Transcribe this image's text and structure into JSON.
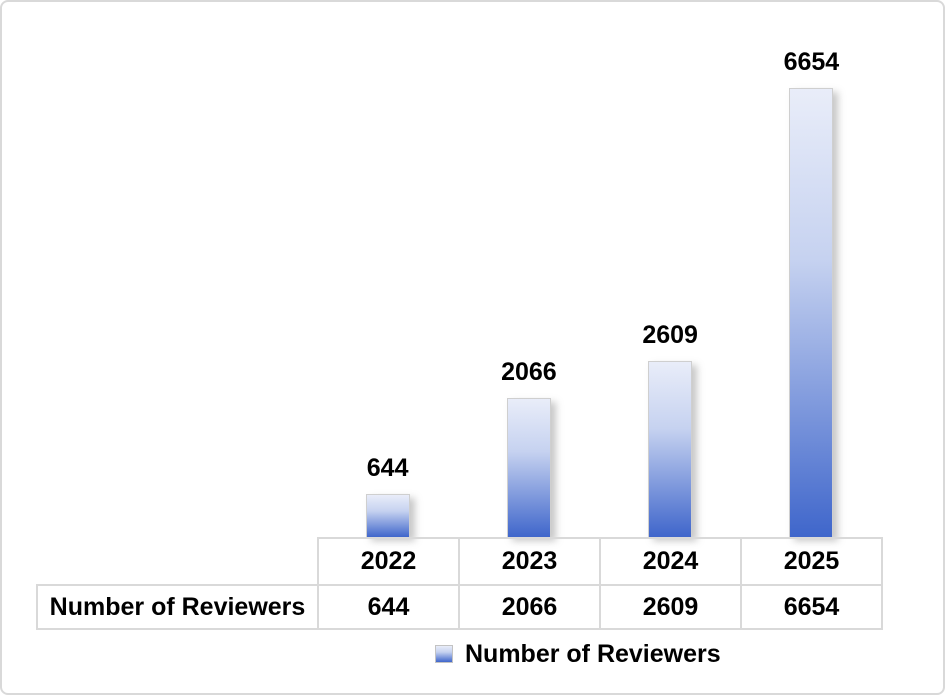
{
  "window": {
    "background": "#FFFFFF",
    "frame_border_color": "#D9D9D9"
  },
  "chart": {
    "legend": {
      "label": "Number of Reviewers"
    },
    "table": {
      "row_header": "Number of Reviewers"
    },
    "colors": {
      "bar_top": "#E9EDF9",
      "bar_mid": "#C6D2F0",
      "bar_bottom": "#3F66CB",
      "table_border": "#D9D9D9",
      "text": "#000000"
    }
  },
  "chart_data": {
    "type": "bar",
    "title": "",
    "xlabel": "",
    "ylabel": "",
    "categories": [
      "2022",
      "2023",
      "2024",
      "2025"
    ],
    "series": [
      {
        "name": "Number of Reviewers",
        "values": [
          644,
          2066,
          2609,
          6654
        ]
      }
    ],
    "ylim": [
      0,
      6654
    ],
    "grid": false,
    "legend_position": "bottom",
    "data_labels_shown": true,
    "data_table_shown": true
  }
}
